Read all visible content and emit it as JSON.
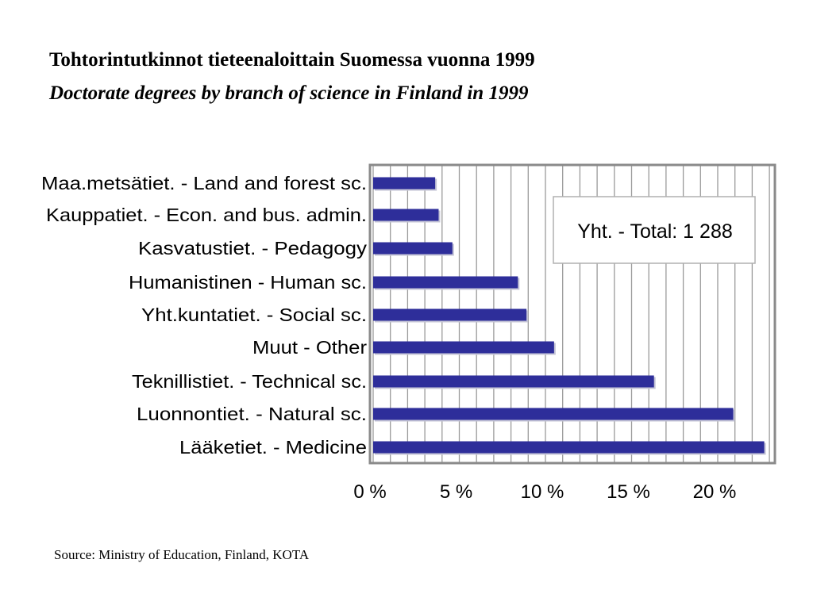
{
  "title": "Tohtorintutkinnot tieteenaloittain Suomessa vuonna 1999",
  "subtitle": "Doctorate degrees by branch of science in Finland in 1999",
  "source": "Source: Ministry of Education, Finland, KOTA",
  "colors": {
    "bar": "#2e2e9a",
    "grid": "#9a9a9a",
    "frame": "#8a8a8a"
  },
  "chart_data": {
    "type": "bar",
    "orientation": "horizontal",
    "title": "Tohtorintutkinnot tieteenaloittain Suomessa vuonna 1999",
    "subtitle": "Doctorate degrees by branch of science in Finland in 1999",
    "categories": [
      "Maa.metsätiet. - Land and forest sc.",
      "Kauppatiet. - Econ. and bus. admin.",
      "Kasvatustiet. - Pedagogy",
      "Humanistinen - Human sc.",
      "Yht.kuntatiet. - Social sc.",
      "Muut - Other",
      "Teknillistiet. - Technical sc.",
      "Luonnontiet. - Natural sc.",
      "Lääketiet. - Medicine"
    ],
    "values": [
      3.6,
      3.8,
      4.6,
      8.4,
      8.9,
      10.5,
      16.3,
      20.9,
      22.7
    ],
    "unit": "%",
    "xlim": [
      0,
      23.2
    ],
    "ticks": [
      0,
      5,
      10,
      15,
      20
    ],
    "tick_labels": [
      "0 %",
      "5 %",
      "10 %",
      "15 %",
      "20 %"
    ],
    "grid_step": 1,
    "grid": true,
    "annotation": "Yht. - Total: 1 288"
  }
}
